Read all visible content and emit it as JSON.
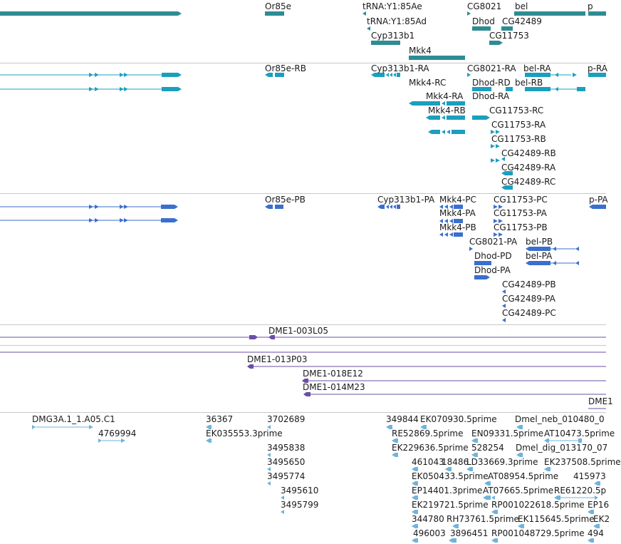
{
  "colors": {
    "gene": "#2e8c93",
    "mrna": "#1b9fbf",
    "protein": "#3a6fce",
    "clone": "#6a4fa6",
    "est": "#6fb4dc",
    "separator": "#c8c8c8"
  },
  "tracks": [
    {
      "name": "gene",
      "labels": [
        {
          "text": "Or85e"
        },
        {
          "text": "tRNA:Y1:85Ae"
        },
        {
          "text": "CG8021"
        },
        {
          "text": "bel"
        },
        {
          "text": "p"
        },
        {
          "text": "tRNA:Y1:85Ad"
        },
        {
          "text": "Dhod"
        },
        {
          "text": "CG42489"
        },
        {
          "text": "Cyp313b1"
        },
        {
          "text": "CG11753"
        },
        {
          "text": "Mkk4"
        }
      ]
    },
    {
      "name": "mrna",
      "labels": [
        {
          "text": "Or85e-RB"
        },
        {
          "text": "Cyp313b1-RA"
        },
        {
          "text": "CG8021-RA"
        },
        {
          "text": "bel-RA"
        },
        {
          "text": "p-RA"
        },
        {
          "text": "Mkk4-RC"
        },
        {
          "text": "Dhod-RD"
        },
        {
          "text": "bel-RB"
        },
        {
          "text": "Mkk4-RA"
        },
        {
          "text": "Dhod-RA"
        },
        {
          "text": "Mkk4-RB"
        },
        {
          "text": "CG11753-RC"
        },
        {
          "text": "CG11753-RA"
        },
        {
          "text": "CG11753-RB"
        },
        {
          "text": "CG42489-RB"
        },
        {
          "text": "CG42489-RA"
        },
        {
          "text": "CG42489-RC"
        }
      ]
    },
    {
      "name": "protein",
      "labels": [
        {
          "text": "Or85e-PB"
        },
        {
          "text": "Cyp313b1-PA"
        },
        {
          "text": "Mkk4-PC"
        },
        {
          "text": "CG11753-PC"
        },
        {
          "text": "p-PA"
        },
        {
          "text": "Mkk4-PA"
        },
        {
          "text": "CG11753-PA"
        },
        {
          "text": "Mkk4-PB"
        },
        {
          "text": "CG11753-PB"
        },
        {
          "text": "CG8021-PA"
        },
        {
          "text": "bel-PB"
        },
        {
          "text": "Dhod-PD"
        },
        {
          "text": "bel-PA"
        },
        {
          "text": "Dhod-PA"
        },
        {
          "text": "CG42489-PB"
        },
        {
          "text": "CG42489-PA"
        },
        {
          "text": "CG42489-PC"
        }
      ]
    },
    {
      "name": "clone-a",
      "labels": [
        {
          "text": "DME1-003L05"
        }
      ]
    },
    {
      "name": "clone-b",
      "labels": [
        {
          "text": "DME1-013P03"
        },
        {
          "text": "DME1-018E12"
        },
        {
          "text": "DME1-014M23"
        },
        {
          "text": "DME1"
        }
      ]
    },
    {
      "name": "est",
      "labels": [
        {
          "text": "DMG3A.1_1.A05.C1"
        },
        {
          "text": "36367"
        },
        {
          "text": "3702689"
        },
        {
          "text": "349844"
        },
        {
          "text": "EK070930.5prime"
        },
        {
          "text": "Dmel_neb_010480_0"
        },
        {
          "text": "4769994"
        },
        {
          "text": "EK035553.3prime"
        },
        {
          "text": "RE52869.5prime"
        },
        {
          "text": "EN09331.5prime"
        },
        {
          "text": "AT10473.5prime"
        },
        {
          "text": "3495838"
        },
        {
          "text": "EK229636.5prime"
        },
        {
          "text": "528254"
        },
        {
          "text": "Dmel_dig_013170_07"
        },
        {
          "text": "3495650"
        },
        {
          "text": "461043"
        },
        {
          "text": "18486"
        },
        {
          "text": "LD33669.3prime"
        },
        {
          "text": "EK237508.5prime"
        },
        {
          "text": "3495774"
        },
        {
          "text": "EK050433.5prime"
        },
        {
          "text": "AT08954.5prime"
        },
        {
          "text": "415973"
        },
        {
          "text": "3495610"
        },
        {
          "text": "EP14401.3prime"
        },
        {
          "text": "AT07665.5prime"
        },
        {
          "text": "RE61220.5p"
        },
        {
          "text": "3495799"
        },
        {
          "text": "EK219721.5prime"
        },
        {
          "text": "RP001022618.5prime"
        },
        {
          "text": "EP16"
        },
        {
          "text": "344780"
        },
        {
          "text": "RH73761.5prime"
        },
        {
          "text": "EK115645.5prime"
        },
        {
          "text": "EK2"
        },
        {
          "text": "496003"
        },
        {
          "text": "3896451"
        },
        {
          "text": "RP001048729.5prime"
        },
        {
          "text": "494"
        }
      ]
    }
  ]
}
